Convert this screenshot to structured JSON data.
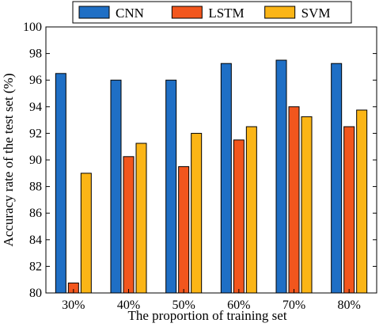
{
  "chart_data": {
    "type": "bar",
    "categories": [
      "30%",
      "40%",
      "50%",
      "60%",
      "70%",
      "80%"
    ],
    "series": [
      {
        "name": "CNN",
        "values": [
          96.5,
          96.0,
          96.0,
          97.25,
          97.5,
          97.25
        ],
        "color": "#1f6fc5"
      },
      {
        "name": "LSTM",
        "values": [
          80.75,
          90.25,
          89.5,
          91.5,
          94.0,
          92.5
        ],
        "color": "#f2561d"
      },
      {
        "name": "SVM",
        "values": [
          89.0,
          91.25,
          92.0,
          92.5,
          93.25,
          93.75
        ],
        "color": "#fbb516"
      }
    ],
    "title": "",
    "xlabel": "The proportion of training set",
    "ylabel": "Accuracy rate of the test set (%)",
    "ylim": [
      80,
      100
    ],
    "yticks": [
      80,
      82,
      84,
      86,
      88,
      90,
      92,
      94,
      96,
      98,
      100
    ],
    "grid": false,
    "legend_position": "top-outside"
  }
}
